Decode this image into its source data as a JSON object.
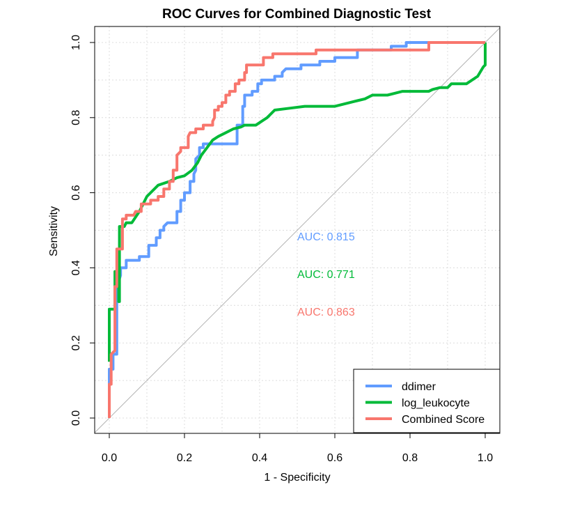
{
  "chart_data": {
    "type": "line",
    "title": "ROC Curves for Combined Diagnostic Test",
    "xlabel": "1 - Specificity",
    "ylabel": "Sensitivity",
    "xlim": [
      0,
      1
    ],
    "ylim": [
      0,
      1
    ],
    "x_ticks": [
      "0.0",
      "0.2",
      "0.4",
      "0.6",
      "0.8",
      "1.0"
    ],
    "y_ticks": [
      "0.0",
      "0.2",
      "0.4",
      "0.6",
      "0.8",
      "1.0"
    ],
    "grid": true,
    "diagonal_reference": true,
    "legend_position": "bottom-right",
    "series": [
      {
        "name": "ddimer",
        "color": "#619CFF",
        "auc_label": "AUC: 0.815",
        "points": [
          [
            0,
            0
          ],
          [
            0,
            0.13
          ],
          [
            0.01,
            0.13
          ],
          [
            0.01,
            0.17
          ],
          [
            0.02,
            0.17
          ],
          [
            0.02,
            0.35
          ],
          [
            0.03,
            0.38
          ],
          [
            0.03,
            0.4
          ],
          [
            0.045,
            0.4
          ],
          [
            0.045,
            0.42
          ],
          [
            0.08,
            0.42
          ],
          [
            0.08,
            0.43
          ],
          [
            0.105,
            0.43
          ],
          [
            0.105,
            0.46
          ],
          [
            0.125,
            0.46
          ],
          [
            0.125,
            0.48
          ],
          [
            0.135,
            0.48
          ],
          [
            0.135,
            0.5
          ],
          [
            0.145,
            0.5
          ],
          [
            0.145,
            0.51
          ],
          [
            0.155,
            0.52
          ],
          [
            0.17,
            0.52
          ],
          [
            0.18,
            0.52
          ],
          [
            0.18,
            0.55
          ],
          [
            0.19,
            0.55
          ],
          [
            0.19,
            0.58
          ],
          [
            0.2,
            0.58
          ],
          [
            0.2,
            0.6
          ],
          [
            0.215,
            0.6
          ],
          [
            0.215,
            0.63
          ],
          [
            0.225,
            0.63
          ],
          [
            0.225,
            0.65
          ],
          [
            0.23,
            0.66
          ],
          [
            0.23,
            0.69
          ],
          [
            0.24,
            0.7
          ],
          [
            0.24,
            0.72
          ],
          [
            0.25,
            0.72
          ],
          [
            0.25,
            0.73
          ],
          [
            0.34,
            0.73
          ],
          [
            0.34,
            0.78
          ],
          [
            0.355,
            0.78
          ],
          [
            0.355,
            0.83
          ],
          [
            0.36,
            0.83
          ],
          [
            0.36,
            0.86
          ],
          [
            0.38,
            0.86
          ],
          [
            0.38,
            0.87
          ],
          [
            0.395,
            0.87
          ],
          [
            0.395,
            0.89
          ],
          [
            0.405,
            0.89
          ],
          [
            0.405,
            0.9
          ],
          [
            0.42,
            0.9
          ],
          [
            0.44,
            0.9
          ],
          [
            0.44,
            0.91
          ],
          [
            0.46,
            0.91
          ],
          [
            0.46,
            0.92
          ],
          [
            0.47,
            0.93
          ],
          [
            0.51,
            0.93
          ],
          [
            0.51,
            0.94
          ],
          [
            0.56,
            0.94
          ],
          [
            0.56,
            0.95
          ],
          [
            0.6,
            0.95
          ],
          [
            0.6,
            0.96
          ],
          [
            0.66,
            0.96
          ],
          [
            0.66,
            0.98
          ],
          [
            0.75,
            0.98
          ],
          [
            0.75,
            0.99
          ],
          [
            0.79,
            0.99
          ],
          [
            0.79,
            1.0
          ],
          [
            1.0,
            1.0
          ]
        ]
      },
      {
        "name": "log_leukocyte",
        "color": "#00BA38",
        "auc_label": "AUC: 0.771",
        "points": [
          [
            0,
            0.15
          ],
          [
            0,
            0.29
          ],
          [
            0.015,
            0.29
          ],
          [
            0.015,
            0.39
          ],
          [
            0.025,
            0.39
          ],
          [
            0.025,
            0.31
          ],
          [
            0.027,
            0.31
          ],
          [
            0.027,
            0.51
          ],
          [
            0.04,
            0.51
          ],
          [
            0.045,
            0.52
          ],
          [
            0.06,
            0.52
          ],
          [
            0.08,
            0.55
          ],
          [
            0.1,
            0.59
          ],
          [
            0.13,
            0.62
          ],
          [
            0.16,
            0.63
          ],
          [
            0.18,
            0.64
          ],
          [
            0.2,
            0.645
          ],
          [
            0.22,
            0.66
          ],
          [
            0.235,
            0.68
          ],
          [
            0.245,
            0.7
          ],
          [
            0.26,
            0.72
          ],
          [
            0.275,
            0.74
          ],
          [
            0.29,
            0.75
          ],
          [
            0.31,
            0.76
          ],
          [
            0.33,
            0.77
          ],
          [
            0.35,
            0.775
          ],
          [
            0.36,
            0.78
          ],
          [
            0.39,
            0.78
          ],
          [
            0.42,
            0.8
          ],
          [
            0.44,
            0.82
          ],
          [
            0.48,
            0.825
          ],
          [
            0.52,
            0.83
          ],
          [
            0.6,
            0.83
          ],
          [
            0.64,
            0.84
          ],
          [
            0.66,
            0.845
          ],
          [
            0.68,
            0.85
          ],
          [
            0.7,
            0.86
          ],
          [
            0.74,
            0.86
          ],
          [
            0.76,
            0.865
          ],
          [
            0.78,
            0.87
          ],
          [
            0.85,
            0.87
          ],
          [
            0.86,
            0.875
          ],
          [
            0.88,
            0.88
          ],
          [
            0.9,
            0.88
          ],
          [
            0.91,
            0.89
          ],
          [
            0.95,
            0.89
          ],
          [
            0.98,
            0.91
          ],
          [
            0.995,
            0.935
          ],
          [
            1.0,
            0.94
          ],
          [
            1.0,
            1.0
          ]
        ]
      },
      {
        "name": "Combined Score",
        "color": "#F8766D",
        "auc_label": "AUC: 0.863",
        "points": [
          [
            0,
            0
          ],
          [
            0,
            0.09
          ],
          [
            0.005,
            0.09
          ],
          [
            0.005,
            0.17
          ],
          [
            0.015,
            0.18
          ],
          [
            0.015,
            0.35
          ],
          [
            0.02,
            0.35
          ],
          [
            0.02,
            0.45
          ],
          [
            0.035,
            0.45
          ],
          [
            0.035,
            0.53
          ],
          [
            0.045,
            0.53
          ],
          [
            0.045,
            0.54
          ],
          [
            0.065,
            0.54
          ],
          [
            0.07,
            0.55
          ],
          [
            0.085,
            0.55
          ],
          [
            0.085,
            0.57
          ],
          [
            0.11,
            0.57
          ],
          [
            0.11,
            0.58
          ],
          [
            0.13,
            0.58
          ],
          [
            0.13,
            0.59
          ],
          [
            0.145,
            0.59
          ],
          [
            0.145,
            0.61
          ],
          [
            0.16,
            0.61
          ],
          [
            0.16,
            0.63
          ],
          [
            0.17,
            0.63
          ],
          [
            0.17,
            0.66
          ],
          [
            0.18,
            0.66
          ],
          [
            0.18,
            0.7
          ],
          [
            0.19,
            0.71
          ],
          [
            0.19,
            0.72
          ],
          [
            0.21,
            0.72
          ],
          [
            0.21,
            0.75
          ],
          [
            0.215,
            0.76
          ],
          [
            0.23,
            0.76
          ],
          [
            0.23,
            0.77
          ],
          [
            0.25,
            0.77
          ],
          [
            0.25,
            0.78
          ],
          [
            0.275,
            0.78
          ],
          [
            0.275,
            0.79
          ],
          [
            0.28,
            0.8
          ],
          [
            0.28,
            0.82
          ],
          [
            0.29,
            0.82
          ],
          [
            0.29,
            0.83
          ],
          [
            0.3,
            0.83
          ],
          [
            0.3,
            0.84
          ],
          [
            0.31,
            0.84
          ],
          [
            0.31,
            0.86
          ],
          [
            0.32,
            0.86
          ],
          [
            0.32,
            0.87
          ],
          [
            0.335,
            0.87
          ],
          [
            0.335,
            0.89
          ],
          [
            0.345,
            0.89
          ],
          [
            0.345,
            0.9
          ],
          [
            0.36,
            0.9
          ],
          [
            0.36,
            0.92
          ],
          [
            0.365,
            0.92
          ],
          [
            0.365,
            0.94
          ],
          [
            0.41,
            0.94
          ],
          [
            0.41,
            0.96
          ],
          [
            0.435,
            0.96
          ],
          [
            0.435,
            0.97
          ],
          [
            0.55,
            0.97
          ],
          [
            0.55,
            0.98
          ],
          [
            0.85,
            0.98
          ],
          [
            0.85,
            1.0
          ],
          [
            1.0,
            1.0
          ]
        ]
      }
    ]
  }
}
